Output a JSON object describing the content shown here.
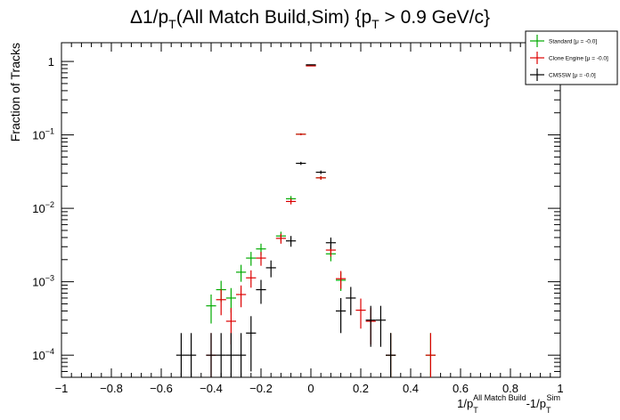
{
  "chart_data": {
    "type": "scatter",
    "title_parts": {
      "delta": "Δ1/p",
      "sub1": "T",
      "mid": "(All Match Build,Sim) {p",
      "sub2": "T",
      "end": " > 0.9 GeV/c}"
    },
    "ylabel": "Fraction of Tracks",
    "xlabel_parts": {
      "a": "1/p",
      "a_sub": "T",
      "a_sup": "All Match Build",
      "b": "-1/p",
      "b_sub": "T",
      "b_sup": "Sim"
    },
    "xlim": [
      -1,
      1
    ],
    "ylim": [
      5e-05,
      1.8
    ],
    "log_y": true,
    "bin_width": 0.04,
    "x_ticks": [
      "−1",
      "−0.8",
      "−0.6",
      "−0.4",
      "−0.2",
      "0",
      "0.2",
      "0.4",
      "0.6",
      "0.8",
      "1"
    ],
    "x_tick_values": [
      -1,
      -0.8,
      -0.6,
      -0.4,
      -0.2,
      0,
      0.2,
      0.4,
      0.6,
      0.8,
      1
    ],
    "y_ticks": [
      {
        "value": 0.0001,
        "base": "10",
        "exp": "−4"
      },
      {
        "value": 0.001,
        "base": "10",
        "exp": "−3"
      },
      {
        "value": 0.01,
        "base": "10",
        "exp": "−2"
      },
      {
        "value": 0.1,
        "base": "10",
        "exp": "−1"
      },
      {
        "value": 1,
        "base": "1",
        "exp": ""
      }
    ],
    "legend_position": "top-right",
    "series": [
      {
        "name": "Standard  [μ = -0.0]",
        "color": "#00aa00",
        "points": [
          {
            "x": -0.4,
            "y": 0.00047,
            "err": 0.0002
          },
          {
            "x": -0.36,
            "y": 0.00078,
            "err": 0.00025
          },
          {
            "x": -0.32,
            "y": 0.0006,
            "err": 0.00022
          },
          {
            "x": -0.28,
            "y": 0.00135,
            "err": 0.00035
          },
          {
            "x": -0.24,
            "y": 0.0021,
            "err": 0.00045
          },
          {
            "x": -0.2,
            "y": 0.0028,
            "err": 0.0005
          },
          {
            "x": -0.12,
            "y": 0.0042,
            "err": 0.0006
          },
          {
            "x": -0.08,
            "y": 0.0135,
            "err": 0.0012
          },
          {
            "x": -0.04,
            "y": 0.102,
            "err": 0.003
          },
          {
            "x": 0.0,
            "y": 0.88,
            "err": 0.01
          },
          {
            "x": 0.04,
            "y": 0.026,
            "err": 0.0015
          },
          {
            "x": 0.08,
            "y": 0.0024,
            "err": 0.0005
          },
          {
            "x": 0.12,
            "y": 0.00105,
            "err": 0.0003
          },
          {
            "x": 0.32,
            "y": 0.0001,
            "err": 0.0001
          },
          {
            "x": 0.48,
            "y": 0.0001,
            "err": 0.0001
          }
        ]
      },
      {
        "name": "Clone Engine  [μ = -0.0]",
        "color": "#dd0000",
        "points": [
          {
            "x": -0.4,
            "y": 0.0001,
            "err": 0.0001
          },
          {
            "x": -0.36,
            "y": 0.00057,
            "err": 0.00022
          },
          {
            "x": -0.32,
            "y": 0.00029,
            "err": 0.00015
          },
          {
            "x": -0.28,
            "y": 0.00067,
            "err": 0.00022
          },
          {
            "x": -0.24,
            "y": 0.00113,
            "err": 0.0003
          },
          {
            "x": -0.2,
            "y": 0.0021,
            "err": 0.00045
          },
          {
            "x": -0.12,
            "y": 0.0039,
            "err": 0.0006
          },
          {
            "x": -0.08,
            "y": 0.0124,
            "err": 0.0011
          },
          {
            "x": -0.04,
            "y": 0.102,
            "err": 0.003
          },
          {
            "x": 0.0,
            "y": 0.87,
            "err": 0.01
          },
          {
            "x": 0.04,
            "y": 0.026,
            "err": 0.0015
          },
          {
            "x": 0.08,
            "y": 0.0027,
            "err": 0.0005
          },
          {
            "x": 0.12,
            "y": 0.0011,
            "err": 0.0003
          },
          {
            "x": 0.2,
            "y": 0.00041,
            "err": 0.00018
          },
          {
            "x": 0.24,
            "y": 0.00029,
            "err": 0.00015
          },
          {
            "x": 0.32,
            "y": 0.0001,
            "err": 0.0001
          },
          {
            "x": 0.48,
            "y": 0.0001,
            "err": 0.0001
          }
        ]
      },
      {
        "name": "CMSSW  [μ = -0.0]",
        "color": "#000000",
        "points": [
          {
            "x": -0.52,
            "y": 0.0001,
            "err": 0.0001
          },
          {
            "x": -0.48,
            "y": 0.0001,
            "err": 0.0001
          },
          {
            "x": -0.4,
            "y": 0.0001,
            "err": 0.0001
          },
          {
            "x": -0.36,
            "y": 0.0001,
            "err": 0.0001
          },
          {
            "x": -0.32,
            "y": 0.0001,
            "err": 0.0001
          },
          {
            "x": -0.28,
            "y": 0.0001,
            "err": 0.0001
          },
          {
            "x": -0.24,
            "y": 0.0002,
            "err": 0.00014
          },
          {
            "x": -0.2,
            "y": 0.00078,
            "err": 0.00028
          },
          {
            "x": -0.16,
            "y": 0.00155,
            "err": 0.0004
          },
          {
            "x": -0.08,
            "y": 0.0036,
            "err": 0.0006
          },
          {
            "x": -0.04,
            "y": 0.041,
            "err": 0.002
          },
          {
            "x": 0.0,
            "y": 0.9,
            "err": 0.01
          },
          {
            "x": 0.04,
            "y": 0.031,
            "err": 0.0017
          },
          {
            "x": 0.08,
            "y": 0.0034,
            "err": 0.0006
          },
          {
            "x": 0.12,
            "y": 0.0004,
            "err": 0.0002
          },
          {
            "x": 0.16,
            "y": 0.0006,
            "err": 0.00025
          },
          {
            "x": 0.24,
            "y": 0.0003,
            "err": 0.00017
          },
          {
            "x": 0.28,
            "y": 0.0003,
            "err": 0.00017
          },
          {
            "x": 0.32,
            "y": 0.0001,
            "err": 0.0001
          }
        ]
      }
    ]
  }
}
